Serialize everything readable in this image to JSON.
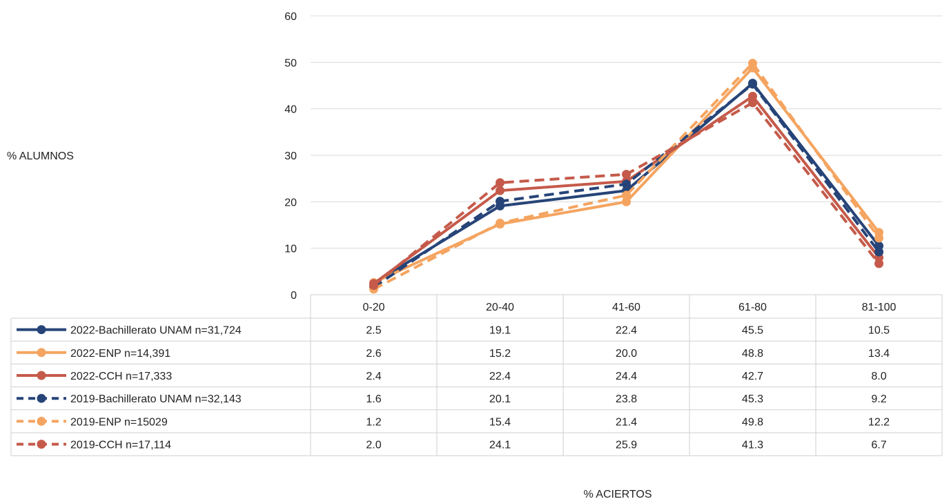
{
  "chart_data": {
    "type": "line",
    "ylabel": "% ALUMNOS",
    "xlabel": "% ACIERTOS",
    "categories": [
      "0-20",
      "20-40",
      "41-60",
      "61-80",
      "81-100"
    ],
    "ylim": [
      0,
      60
    ],
    "yticks": [
      0,
      10,
      20,
      30,
      40,
      50,
      60
    ],
    "grid": true,
    "legend_placement": "data-table",
    "series": [
      {
        "name": "2022-Bachillerato UNAM n=31,724",
        "values": [
          2.5,
          19.1,
          22.4,
          45.5,
          10.5
        ],
        "labels": [
          "2.5",
          "19.1",
          "22.4",
          "45.5",
          "10.5"
        ],
        "color": "#264478",
        "dashed": false
      },
      {
        "name": "2022-ENP  n=14,391",
        "values": [
          2.6,
          15.2,
          20.0,
          48.8,
          13.4
        ],
        "labels": [
          "2.6",
          "15.2",
          "20.0",
          "48.8",
          "13.4"
        ],
        "color": "#F4A460",
        "dashed": false
      },
      {
        "name": "2022-CCH n=17,333",
        "values": [
          2.4,
          22.4,
          24.4,
          42.7,
          8.0
        ],
        "labels": [
          "2.4",
          "22.4",
          "24.4",
          "42.7",
          "8.0"
        ],
        "color": "#C55A4A",
        "dashed": false
      },
      {
        "name": "2019-Bachillerato UNAM n=32,143",
        "values": [
          1.6,
          20.1,
          23.8,
          45.3,
          9.2
        ],
        "labels": [
          "1.6",
          "20.1",
          "23.8",
          "45.3",
          "9.2"
        ],
        "color": "#264478",
        "dashed": true
      },
      {
        "name": "2019-ENP  n=15029",
        "values": [
          1.2,
          15.4,
          21.4,
          49.8,
          12.2
        ],
        "labels": [
          "1.2",
          "15.4",
          "21.4",
          "49.8",
          "12.2"
        ],
        "color": "#F4A460",
        "dashed": true
      },
      {
        "name": "2019-CCH n=17,114",
        "values": [
          2.0,
          24.1,
          25.9,
          41.3,
          6.7
        ],
        "labels": [
          "2.0",
          "24.1",
          "25.9",
          "41.3",
          "6.7"
        ],
        "color": "#C55A4A",
        "dashed": true
      }
    ]
  }
}
